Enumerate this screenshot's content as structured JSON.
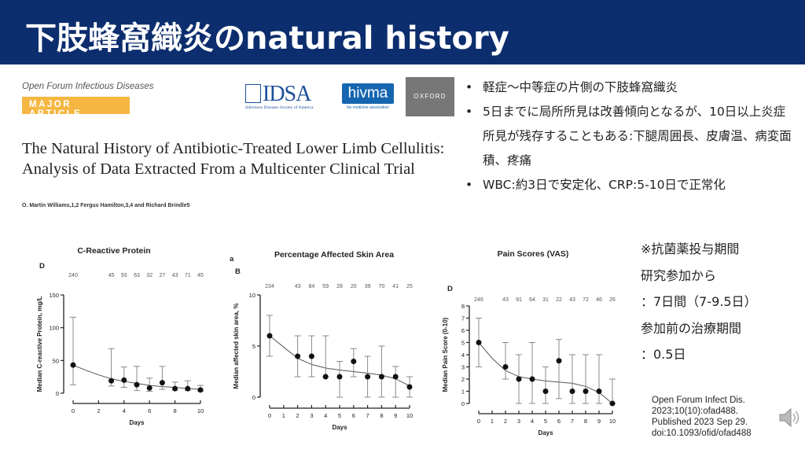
{
  "slide": {
    "title": "下肢蜂窩織炎のnatural history"
  },
  "article": {
    "journal": "Open Forum Infectious Diseases",
    "badge": "MAJOR ARTICLE",
    "logos": {
      "idsa": "IDSA",
      "idsa_sub": "Infectious Diseases Society of America",
      "hivma": "hivma",
      "hivma_sub": "hiv medicine association",
      "oxford": "OXFORD"
    },
    "title": "The Natural History of Antibiotic-Treated Lower Limb Cellulitis: Analysis of Data Extracted From a Multicenter Clinical Trial",
    "authors": "O. Martin Williams,1,2 Fergus Hamilton,3,4 and Richard Brindle5"
  },
  "bullets": [
    "軽症～中等症の片側の下肢蜂窩織炎",
    "5日までに局所所見は改善傾向となるが、10日以上炎症所見が残存することもある:下腿周囲長、皮膚温、病変面積、疼痛",
    "WBC:約3日で安定化、CRP:5-10日で正常化"
  ],
  "note": [
    "※抗菌薬投与期間",
    "研究参加から",
    "：7日間（7-9.5日）",
    "参加前の治療期間",
    "：0.5日"
  ],
  "citation": [
    "Open Forum Infect Dis.",
    "2023;10(10):ofad488.",
    "Published 2023 Sep 29.",
    "doi:10.1093/ofid/ofad488"
  ],
  "icons": {
    "speaker": "speaker-icon"
  },
  "chart_data": [
    {
      "type": "scatter",
      "title": "C-Reactive Protein",
      "panel": "D",
      "xlabel": "Days",
      "ylabel": "Median C-reactive Protein, mg/L",
      "xlim": [
        0,
        10
      ],
      "ylim": [
        0,
        150
      ],
      "xticks": [
        0,
        2,
        4,
        6,
        8,
        10
      ],
      "yticks": [
        0,
        50,
        100,
        150
      ],
      "x": [
        0,
        3,
        4,
        5,
        6,
        7,
        8,
        9,
        10
      ],
      "y": [
        43,
        19,
        20,
        13,
        8,
        16,
        7,
        7,
        5
      ],
      "err_low": [
        13,
        11,
        9,
        4,
        3,
        6,
        5,
        4,
        3
      ],
      "err_high": [
        116,
        68,
        40,
        41,
        23,
        41,
        17,
        19,
        12
      ],
      "n": [
        240,
        45,
        93,
        63,
        32,
        27,
        43,
        71,
        45
      ],
      "fit_x": [
        0,
        1,
        2,
        3,
        4,
        5,
        6,
        7,
        8,
        9,
        10
      ],
      "fit_y": [
        43,
        35,
        28,
        22,
        18,
        15,
        12,
        10,
        9,
        7,
        6
      ]
    },
    {
      "type": "scatter",
      "title": "Percentage Affected Skin Area",
      "panel": "B",
      "panel_prefix": "a",
      "xlabel": "Days",
      "ylabel": "Median affected skin area, %",
      "xlim": [
        0,
        10
      ],
      "ylim": [
        0,
        10
      ],
      "xticks": [
        0,
        1,
        2,
        3,
        4,
        5,
        6,
        7,
        8,
        9,
        10
      ],
      "yticks": [
        0,
        5,
        10
      ],
      "x": [
        0,
        2,
        3,
        4,
        5,
        6,
        7,
        8,
        9,
        10
      ],
      "y": [
        6,
        4,
        4,
        2,
        2,
        3.5,
        2,
        2,
        2,
        1
      ],
      "err_low": [
        4,
        2,
        2,
        2,
        0,
        2,
        0,
        0,
        0,
        0
      ],
      "err_high": [
        8,
        6,
        6,
        6,
        3.5,
        4.75,
        4,
        5,
        3,
        2
      ],
      "n": [
        234,
        43,
        84,
        59,
        28,
        20,
        39,
        70,
        41,
        25
      ],
      "fit_x": [
        0,
        1,
        2,
        3,
        4,
        5,
        6,
        7,
        8,
        9,
        10
      ],
      "fit_y": [
        6,
        4.9,
        3.8,
        3.2,
        2.85,
        2.65,
        2.5,
        2.35,
        2.15,
        1.8,
        1.1
      ]
    },
    {
      "type": "scatter",
      "title": "Pain Scores (VAS)",
      "panel": "D",
      "xlabel": "Days",
      "ylabel": "Median Pain Score (0-10)",
      "xlim": [
        0,
        10
      ],
      "ylim": [
        0,
        8
      ],
      "xticks": [
        0,
        1,
        2,
        3,
        4,
        5,
        6,
        7,
        8,
        9,
        10
      ],
      "yticks": [
        0,
        1,
        2,
        3,
        4,
        5,
        6,
        7,
        8
      ],
      "x": [
        0,
        2,
        3,
        4,
        5,
        6,
        7,
        8,
        9,
        10
      ],
      "y": [
        5,
        3,
        2,
        2,
        1,
        3.5,
        1,
        1,
        1,
        0
      ],
      "err_low": [
        3,
        2,
        0,
        0,
        0,
        0.4,
        0,
        0,
        0,
        0
      ],
      "err_high": [
        7,
        5,
        4,
        5,
        3,
        5.25,
        4,
        4,
        4,
        2
      ],
      "n": [
        246,
        43,
        91,
        64,
        31,
        22,
        43,
        72,
        46,
        26
      ],
      "fit_x": [
        0,
        1,
        2,
        3,
        4,
        5,
        6,
        7,
        8,
        9,
        10
      ],
      "fit_y": [
        5,
        3.7,
        2.7,
        2.2,
        2,
        1.85,
        1.75,
        1.65,
        1.4,
        0.9,
        0
      ]
    }
  ]
}
